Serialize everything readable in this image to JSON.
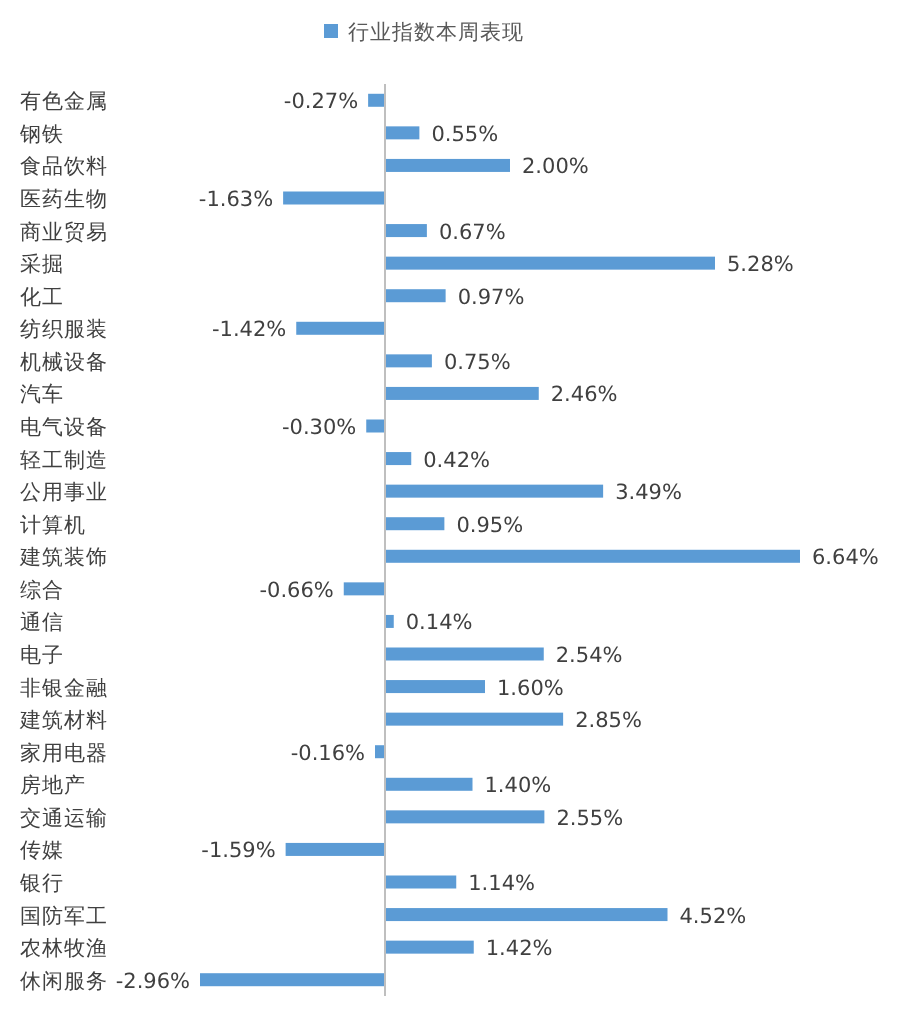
{
  "chart_data": {
    "type": "bar",
    "orientation": "horizontal",
    "legend": "top",
    "categories": [
      "有色金属",
      "钢铁",
      "食品饮料",
      "医药生物",
      "商业贸易",
      "采掘",
      "化工",
      "纺织服装",
      "机械设备",
      "汽车",
      "电气设备",
      "轻工制造",
      "公用事业",
      "计算机",
      "建筑装饰",
      "综合",
      "通信",
      "电子",
      "非银金融",
      "建筑材料",
      "家用电器",
      "房地产",
      "交通运输",
      "传媒",
      "银行",
      "国防军工",
      "农林牧渔",
      "休闲服务"
    ],
    "series": [
      {
        "name": "行业指数本周表现",
        "color": "#5b9bd5",
        "values": [
          -0.27,
          0.55,
          2.0,
          -1.63,
          0.67,
          5.28,
          0.97,
          -1.42,
          0.75,
          2.46,
          -0.3,
          0.42,
          3.49,
          0.95,
          6.64,
          -0.66,
          0.14,
          2.54,
          1.6,
          2.85,
          -0.16,
          1.4,
          2.55,
          -1.59,
          1.14,
          4.52,
          1.42,
          -2.96
        ],
        "value_labels": [
          "-0.27%",
          "0.55%",
          "2.00%",
          "-1.63%",
          "0.67%",
          "5.28%",
          "0.97%",
          "-1.42%",
          "0.75%",
          "2.46%",
          "-0.30%",
          "0.42%",
          "3.49%",
          "0.95%",
          "6.64%",
          "-0.66%",
          "0.14%",
          "2.54%",
          "1.60%",
          "2.85%",
          "-0.16%",
          "1.40%",
          "2.55%",
          "-1.59%",
          "1.14%",
          "4.52%",
          "1.42%",
          "-2.96%"
        ]
      }
    ]
  }
}
